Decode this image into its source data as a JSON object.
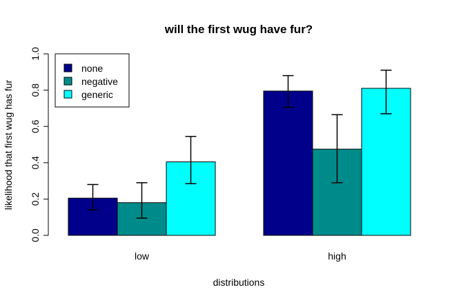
{
  "chart_data": {
    "type": "bar",
    "title": "will the first wug have fur?",
    "xlabel": "distributions",
    "ylabel": "likelihood that first wug has fur",
    "categories": [
      "low",
      "high"
    ],
    "ylim": [
      0,
      1
    ],
    "yticks": [
      "0.0",
      "0.2",
      "0.4",
      "0.6",
      "0.8",
      "1.0"
    ],
    "legend_position": "top-left",
    "series": [
      {
        "name": "none",
        "color": "#00008B",
        "values": [
          0.205,
          0.795
        ],
        "error_low": [
          0.14,
          0.705
        ],
        "error_high": [
          0.28,
          0.88
        ]
      },
      {
        "name": "negative",
        "color": "#008B8B",
        "values": [
          0.18,
          0.475
        ],
        "error_low": [
          0.095,
          0.29
        ],
        "error_high": [
          0.29,
          0.665
        ]
      },
      {
        "name": "generic",
        "color": "#00FFFF",
        "values": [
          0.405,
          0.81
        ],
        "error_low": [
          0.285,
          0.67
        ],
        "error_high": [
          0.545,
          0.91
        ]
      }
    ]
  }
}
